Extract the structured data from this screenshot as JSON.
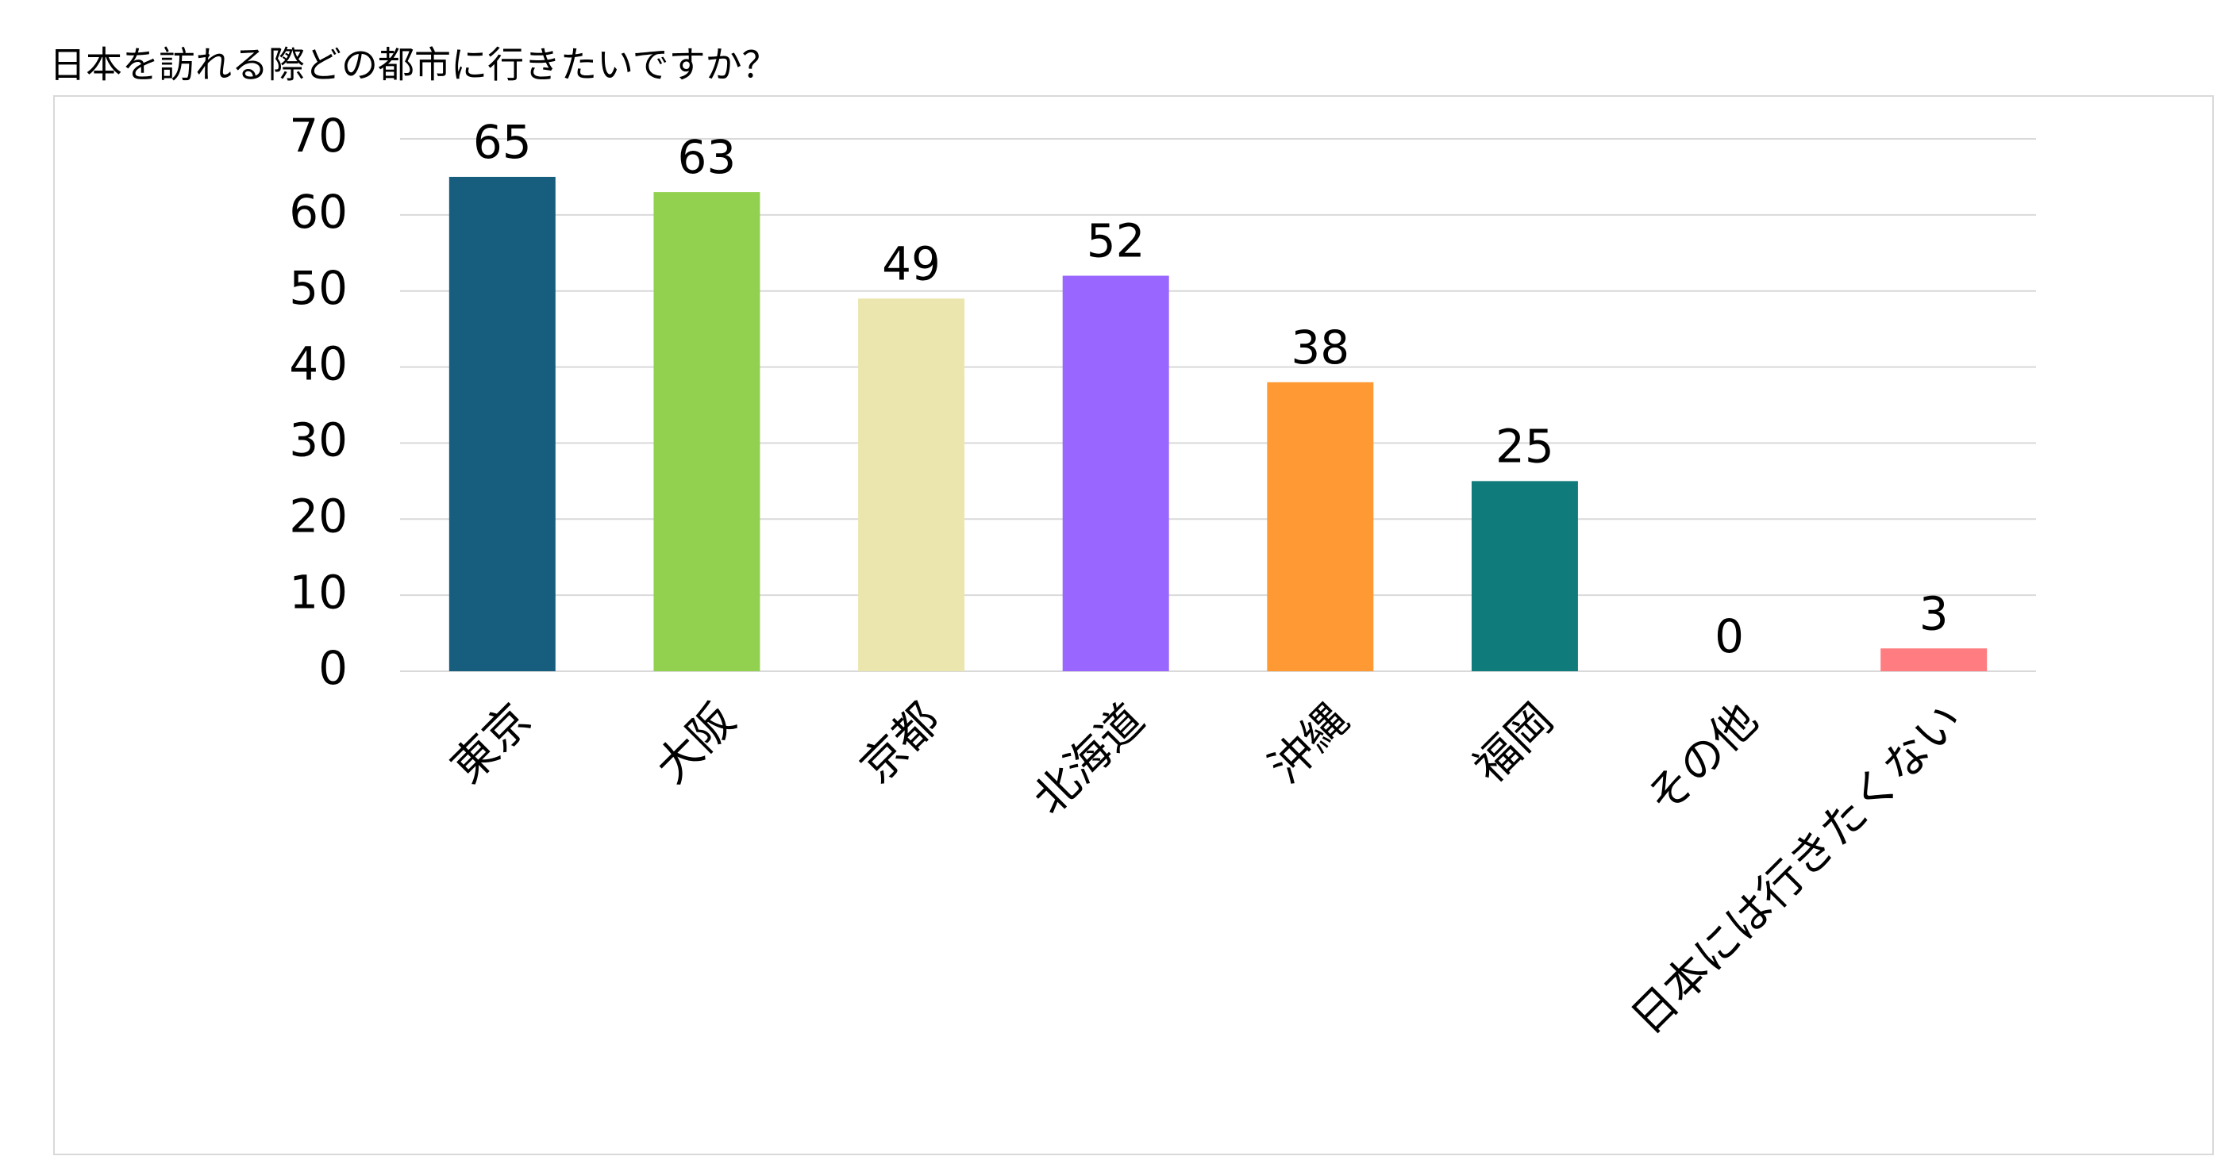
{
  "chart_data": {
    "type": "bar",
    "title": "日本を訪れる際どの都市に行きたいですか？",
    "categories": [
      "東京",
      "大阪",
      "京都",
      "北海道",
      "沖縄",
      "福岡",
      "その他",
      "日本には行きたくない"
    ],
    "values": [
      65,
      63,
      49,
      52,
      38,
      25,
      0,
      3
    ],
    "colors": [
      "#175d7e",
      "#92d050",
      "#ebe6ad",
      "#9966ff",
      "#ff9933",
      "#107b7b",
      "#a5a5a5",
      "#ff7c80"
    ],
    "ylim": [
      0,
      70
    ],
    "yticks": [
      0,
      10,
      20,
      30,
      40,
      50,
      60,
      70
    ],
    "grid": true
  }
}
